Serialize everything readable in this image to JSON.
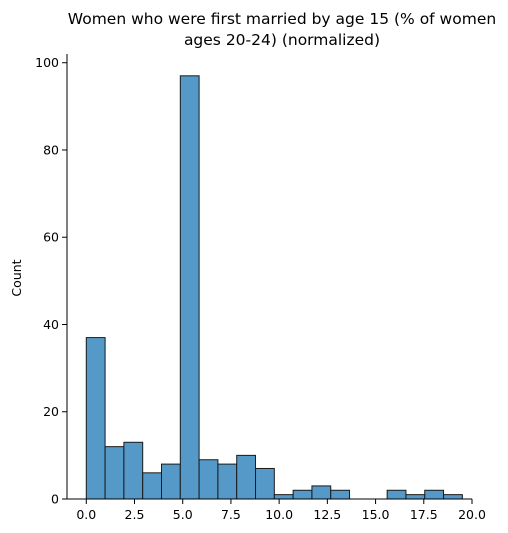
{
  "chart_data": {
    "type": "bar",
    "title_lines": [
      "Women who were first married by age 15 (% of women",
      "ages 20-24) (normalized)"
    ],
    "xlabel": "",
    "ylabel": "Count",
    "xlim": [
      -1.0,
      20.0
    ],
    "ylim": [
      0,
      102
    ],
    "x_ticks": [
      0.0,
      2.5,
      5.0,
      7.5,
      10.0,
      12.5,
      15.0,
      17.5,
      20.0
    ],
    "x_tick_labels": [
      "0.0",
      "2.5",
      "5.0",
      "7.5",
      "10.0",
      "12.5",
      "15.0",
      "17.5",
      "20.0"
    ],
    "y_ticks": [
      0,
      20,
      40,
      60,
      80,
      100
    ],
    "y_tick_labels": [
      "0",
      "20",
      "40",
      "60",
      "80",
      "100"
    ],
    "bin_start": 0.0,
    "bin_width": 0.975,
    "values": [
      37,
      12,
      13,
      6,
      8,
      97,
      9,
      8,
      10,
      7,
      1,
      2,
      3,
      2,
      0,
      0,
      2,
      1,
      2,
      1
    ],
    "bar_color": "#5499c7",
    "edge_color": "#1a1a1a",
    "grid": false
  }
}
